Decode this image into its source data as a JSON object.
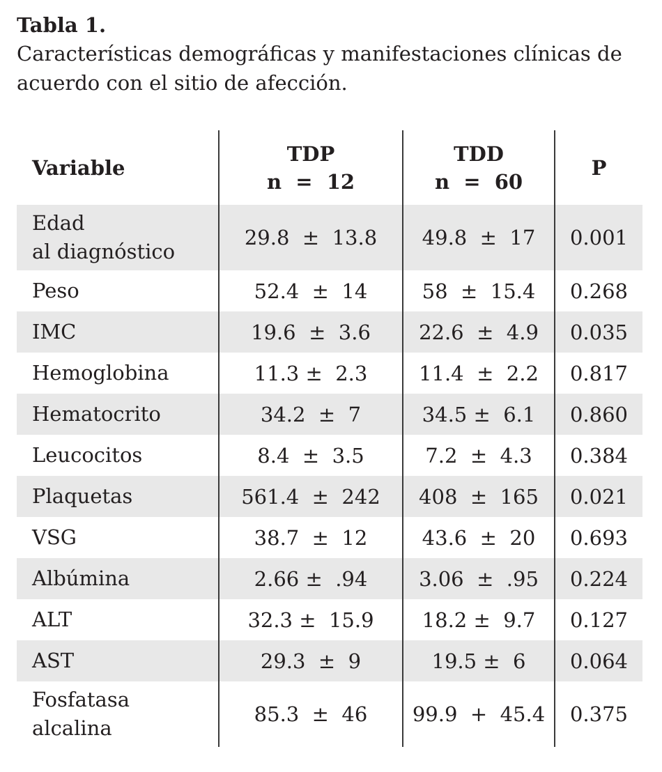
{
  "caption": {
    "title": "Tabla 1.",
    "text": "Características demográficas y manifestaciones clínicas de acuerdo con el sitio de afección."
  },
  "table": {
    "headers": {
      "variable": "Variable",
      "tdp_name": "TDP",
      "tdp_n": "n  =  12",
      "tdd_name": "TDD",
      "tdd_n": "n  =  60",
      "p": "P"
    },
    "rows": [
      {
        "variable_line1": "Edad",
        "variable_line2": "al diagnóstico",
        "tdp": "29.8  ±  13.8",
        "tdd": "49.8  ±  17",
        "p": "0.001"
      },
      {
        "variable": "Peso",
        "tdp": "52.4  ±  14",
        "tdd": "58  ±  15.4",
        "p": "0.268"
      },
      {
        "variable": "IMC",
        "tdp": "19.6  ±  3.6",
        "tdd": "22.6  ±  4.9",
        "p": "0.035"
      },
      {
        "variable": "Hemoglobina",
        "tdp": "11.3 ±  2.3",
        "tdd": "11.4  ±  2.2",
        "p": "0.817"
      },
      {
        "variable": "Hematocrito",
        "tdp": "34.2  ±  7",
        "tdd": "34.5 ±  6.1",
        "p": "0.860"
      },
      {
        "variable": "Leucocitos",
        "tdp": "8.4  ±  3.5",
        "tdd": "7.2  ±  4.3",
        "p": "0.384"
      },
      {
        "variable": "Plaquetas",
        "tdp": "561.4  ±  242",
        "tdd": "408  ±  165",
        "p": "0.021"
      },
      {
        "variable": "VSG",
        "tdp": "38.7  ±  12",
        "tdd": "43.6  ±  20",
        "p": "0.693"
      },
      {
        "variable": "Albúmina",
        "tdp": "2.66 ±  .94",
        "tdd": "3.06  ±  .95",
        "p": "0.224"
      },
      {
        "variable": "ALT",
        "tdp": "32.3 ±  15.9",
        "tdd": "18.2 ±  9.7",
        "p": "0.127"
      },
      {
        "variable": "AST",
        "tdp": "29.3  ±  9",
        "tdd": "19.5 ±  6",
        "p": "0.064"
      },
      {
        "variable_line1": "Fosfatasa",
        "variable_line2": "alcalina",
        "tdp": "85.3  ±  46",
        "tdd": "99.9  +  45.4",
        "p": "0.375"
      }
    ]
  },
  "colors": {
    "row_shade": "#e8e8e8",
    "text": "#231f20",
    "rule": "#3a3a3a"
  }
}
